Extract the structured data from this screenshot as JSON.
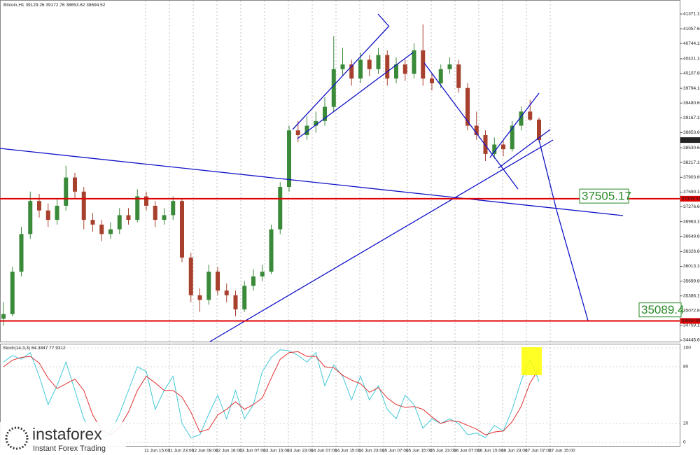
{
  "chart_data": [
    {
      "type": "candlestick",
      "title": "Bitcoin,H1",
      "open": [
        34900,
        35000,
        35900,
        36700,
        37400,
        37200,
        37000,
        37300,
        37900,
        37600,
        37000,
        36900,
        36700,
        36800,
        37100,
        37000,
        37500,
        37300,
        37000,
        37100,
        37400,
        36200,
        35400,
        35300,
        35900,
        35500,
        35400,
        35100,
        35600,
        35800,
        35900,
        36800,
        37700,
        38900,
        38800,
        39000,
        39100,
        39400,
        40200,
        40300,
        40000,
        40400,
        40200,
        40500,
        40000,
        40300,
        40100,
        40600,
        40000,
        39900,
        40200,
        40300,
        39800,
        39000,
        38800,
        38400,
        38600,
        38500,
        39000,
        39300,
        39129.26
      ],
      "high": [
        35250,
        36000,
        36850,
        37600,
        37550,
        37350,
        37450,
        38150,
        38000,
        37700,
        37150,
        37000,
        36950,
        37250,
        37250,
        37650,
        37600,
        37400,
        37250,
        37500,
        37450,
        36300,
        35550,
        36050,
        36000,
        35650,
        35500,
        35700,
        35950,
        36050,
        36900,
        37800,
        39000,
        39100,
        39200,
        39300,
        39600,
        40900,
        40650,
        40400,
        40550,
        40500,
        40650,
        40600,
        40450,
        40400,
        40750,
        41150,
        40100,
        40300,
        40450,
        40400,
        39900,
        39300,
        38900,
        38750,
        38700,
        39100,
        39400,
        39550,
        39172.76
      ],
      "low": [
        34750,
        34950,
        35800,
        36600,
        37050,
        36850,
        36900,
        37200,
        37450,
        36800,
        36750,
        36550,
        36600,
        36700,
        36900,
        36950,
        37200,
        36850,
        36900,
        37000,
        36100,
        35250,
        35050,
        35200,
        35400,
        35250,
        34950,
        35050,
        35500,
        35700,
        35850,
        36700,
        37600,
        38650,
        38700,
        38850,
        39000,
        39300,
        40050,
        39850,
        39900,
        40050,
        40100,
        39850,
        39900,
        39950,
        40000,
        39850,
        39750,
        39800,
        40100,
        39700,
        38900,
        38700,
        38250,
        38300,
        38350,
        38450,
        38900,
        39100,
        38653.62
      ],
      "close": [
        35000,
        35900,
        36700,
        37400,
        37200,
        37000,
        37300,
        37900,
        37600,
        37000,
        36900,
        36700,
        36800,
        37100,
        37000,
        37500,
        37300,
        37000,
        37100,
        37400,
        36200,
        35400,
        35300,
        35900,
        35500,
        35400,
        35100,
        35600,
        35800,
        35900,
        36800,
        37700,
        38900,
        38800,
        39000,
        39100,
        39400,
        40200,
        40300,
        40000,
        40400,
        40200,
        40500,
        40000,
        40300,
        40100,
        40600,
        40000,
        39900,
        40200,
        40300,
        39800,
        39000,
        38800,
        38400,
        38600,
        38500,
        39000,
        39300,
        39129.26,
        38694.52
      ],
      "up_color": "#3a8a3a",
      "down_color": "#a8402e",
      "ylim": [
        34445.6,
        41371.1
      ],
      "yticks": [
        {
          "value": 41371.1,
          "label": "41371.10"
        },
        {
          "value": 41057.6,
          "label": "41057.60"
        },
        {
          "value": 40744.1,
          "label": "40744.10"
        },
        {
          "value": 40421.1,
          "label": "40421.10"
        },
        {
          "value": 40107.6,
          "label": "40107.60"
        },
        {
          "value": 39794.1,
          "label": "39794.10"
        },
        {
          "value": 39480.6,
          "label": "39480.60"
        },
        {
          "value": 39167.1,
          "label": "39167.10"
        },
        {
          "value": 38853.6,
          "label": "38853.60"
        },
        {
          "value": 38530.6,
          "label": "38530.60"
        },
        {
          "value": 38217.1,
          "label": "38217.10"
        },
        {
          "value": 37903.6,
          "label": "37903.60"
        },
        {
          "value": 37590.1,
          "label": "37590.10"
        },
        {
          "value": 37276.6,
          "label": "37276.60"
        },
        {
          "value": 36963.1,
          "label": "36963.10"
        },
        {
          "value": 36649.6,
          "label": "36649.60"
        },
        {
          "value": 36326.6,
          "label": "36326.60"
        },
        {
          "value": 36013.1,
          "label": "36013.10"
        },
        {
          "value": 35699.6,
          "label": "35699.60"
        },
        {
          "value": 35386.1,
          "label": "35386.10"
        },
        {
          "value": 35072.6,
          "label": "35072.60"
        },
        {
          "value": 34759.1,
          "label": "34759.10"
        },
        {
          "value": 34445.6,
          "label": "34445.60"
        }
      ],
      "hlines": [
        37449.43,
        34854.94
      ],
      "hline_color": "#e00000",
      "targets": [
        37505.17,
        35089.4
      ],
      "time_labels": [
        "11 Jun 15:00",
        "11 Jun 23:00",
        "12 Jun 08:00",
        "12 Jun 16:00",
        "13 Jun 07:00",
        "13 Jun 15:00",
        "13 Jun 23:00",
        "14 Jun 07:00",
        "14 Jun 15:00",
        "14 Jun 23:00",
        "15 Jun 07:00",
        "15 Jun 15:00",
        "15 Jun 23:00",
        "16 Jun 07:00",
        "16 Jun 15:00",
        "16 Jun 23:00",
        "17 Jun 07:00",
        "17 Jun 15:00"
      ]
    },
    {
      "type": "line",
      "title": "Stoch(14,3,3)",
      "series": [
        {
          "color": "#40c8d8",
          "values": [
            85,
            92,
            88,
            95,
            70,
            40,
            60,
            85,
            55,
            25,
            8,
            5,
            10,
            30,
            55,
            80,
            75,
            35,
            55,
            70,
            20,
            5,
            8,
            30,
            50,
            25,
            55,
            25,
            40,
            75,
            90,
            98,
            97,
            92,
            85,
            95,
            60,
            82,
            70,
            45,
            70,
            45,
            60,
            35,
            25,
            50,
            40,
            15,
            25,
            20,
            25,
            20,
            8,
            10,
            5,
            18,
            12,
            35,
            65,
            88,
            64.3847
          ]
        },
        {
          "color": "#e03030",
          "values": [
            80,
            87,
            90,
            91,
            84,
            68,
            57,
            62,
            67,
            55,
            29,
            13,
            8,
            16,
            32,
            55,
            70,
            63,
            55,
            55,
            48,
            32,
            11,
            14,
            29,
            35,
            43,
            35,
            40,
            47,
            68,
            88,
            95,
            96,
            91,
            91,
            80,
            79,
            71,
            66,
            62,
            53,
            58,
            47,
            40,
            37,
            38,
            35,
            27,
            20,
            23,
            22,
            18,
            14,
            8,
            11,
            12,
            22,
            38,
            63,
            77.9312
          ]
        }
      ],
      "ylim": [
        0,
        100
      ],
      "yticks": [
        0,
        20,
        80,
        100
      ]
    }
  ],
  "logo": {
    "name": "instaforex",
    "tagline": "Instant Forex Trading"
  }
}
